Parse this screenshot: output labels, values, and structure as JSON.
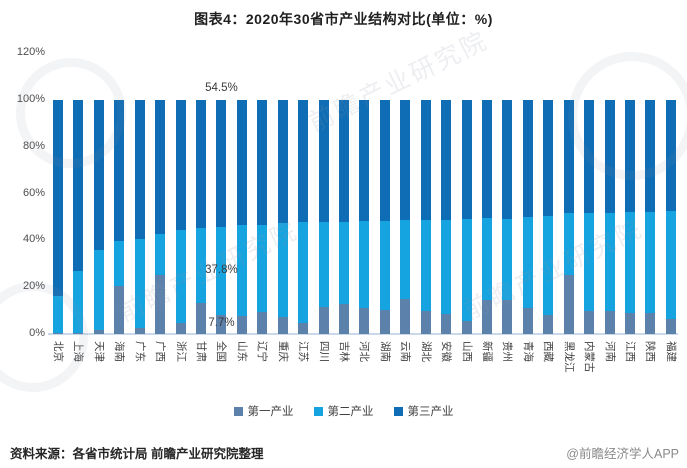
{
  "title": "图表4：2020年30省市产业结构对比(单位：%)",
  "watermark_text": "前瞻产业研究院",
  "footer": {
    "source": "资料来源：各省市统计局 前瞻产业研究院整理",
    "brand": "@前瞻经济学人APP"
  },
  "chart_data": {
    "type": "bar",
    "stacked": true,
    "unit": "%",
    "title": "图表4：2020年30省市产业结构对比(单位：%)",
    "categories": [
      "北京",
      "上海",
      "天津",
      "海南",
      "广东",
      "广西",
      "浙江",
      "甘肃",
      "全国",
      "山东",
      "辽宁",
      "重庆",
      "江苏",
      "四川",
      "吉林",
      "河北",
      "湖南",
      "云南",
      "湖北",
      "安徽",
      "山西",
      "新疆",
      "贵州",
      "青海",
      "西藏",
      "黑龙江",
      "内蒙古",
      "河南",
      "江西",
      "陕西",
      "福建"
    ],
    "series": [
      {
        "name": "第一产业",
        "color": "#5C81AB",
        "values": [
          0.4,
          0.3,
          1.5,
          20.5,
          2.5,
          25.0,
          4.4,
          13.2,
          7.7,
          7.3,
          9.0,
          7.2,
          4.4,
          11.4,
          12.6,
          10.7,
          10.0,
          14.7,
          9.5,
          8.2,
          5.4,
          14.4,
          14.3,
          11.1,
          7.9,
          25.1,
          9.5,
          9.7,
          8.7,
          8.7,
          6.2
        ]
      },
      {
        "name": "第二产业",
        "color": "#16A4E0",
        "values": [
          15.8,
          26.6,
          34.1,
          19.1,
          38.0,
          17.5,
          40.0,
          31.9,
          37.8,
          39.1,
          37.5,
          40.0,
          43.1,
          36.2,
          35.2,
          37.6,
          38.2,
          33.8,
          39.0,
          40.5,
          43.5,
          35.0,
          34.7,
          38.6,
          42.2,
          26.2,
          41.8,
          41.6,
          43.2,
          43.4,
          46.3
        ]
      },
      {
        "name": "第三产业",
        "color": "#0E6DB4",
        "values": [
          83.8,
          73.1,
          64.4,
          60.4,
          59.5,
          57.5,
          55.6,
          54.9,
          54.5,
          53.6,
          53.5,
          52.8,
          52.5,
          52.4,
          52.2,
          51.7,
          51.8,
          51.5,
          51.5,
          51.3,
          51.1,
          50.6,
          51.0,
          50.3,
          49.9,
          48.7,
          48.7,
          48.7,
          48.1,
          47.9,
          47.5
        ]
      }
    ],
    "y_axis": {
      "min": 0,
      "max": 120,
      "tick_step": 20,
      "ticks": [
        "0%",
        "20%",
        "40%",
        "60%",
        "80%",
        "100%",
        "120%"
      ]
    },
    "grid": false,
    "legend_position": "bottom",
    "annotations": [
      {
        "category": "全国",
        "text": "54.5%",
        "y_pct": 104.5
      },
      {
        "category": "全国",
        "text": "37.8%",
        "y_pct": 26.6
      },
      {
        "category": "全国",
        "text": "7.7%",
        "y_pct": 3.9
      }
    ]
  }
}
